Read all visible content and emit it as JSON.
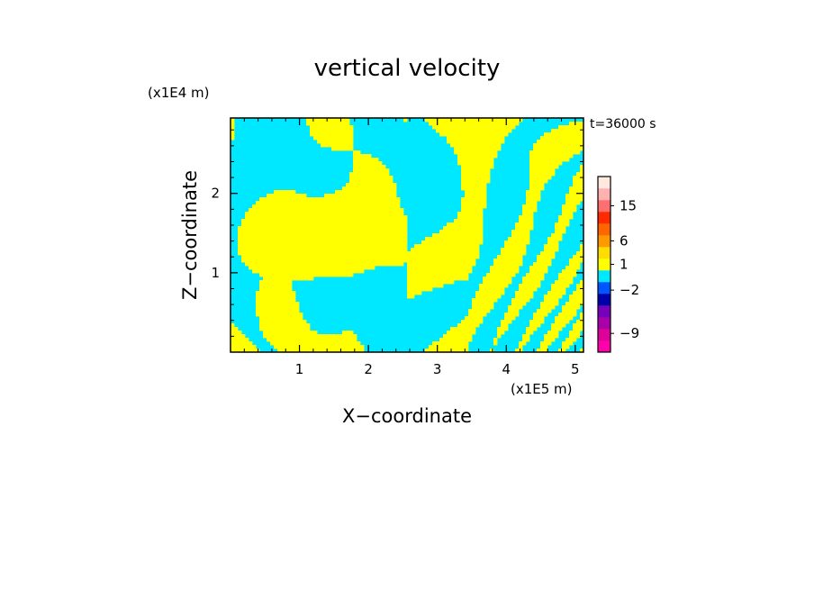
{
  "chart_data": {
    "type": "heatmap",
    "title": "vertical velocity",
    "xlabel": "X−coordinate",
    "ylabel": "Z−coordinate",
    "x_unit": "(x1E5 m)",
    "y_unit": "(x1E4 m)",
    "time_label": "t=36000 s",
    "xlim": [
      0,
      5.12
    ],
    "ylim": [
      0,
      2.95
    ],
    "x_ticks": [
      "1",
      "2",
      "3",
      "4",
      "5"
    ],
    "x_tick_values": [
      1,
      2,
      3,
      4,
      5
    ],
    "y_ticks": [
      "1",
      "2"
    ],
    "y_tick_values": [
      1,
      2
    ],
    "field_colors": {
      "positive": "#ffff00",
      "negative": "#00e8ff"
    },
    "colorbar": {
      "labels": [
        "15",
        "6",
        "1",
        "−2",
        "−9"
      ],
      "label_values": [
        15,
        6,
        1,
        -2,
        -9
      ],
      "bands": [
        {
          "color": "#ff00aa"
        },
        {
          "color": "#dd0099"
        },
        {
          "color": "#aa00aa"
        },
        {
          "color": "#7700bb"
        },
        {
          "color": "#0000aa"
        },
        {
          "color": "#0055ff"
        },
        {
          "color": "#00e8ff"
        },
        {
          "color": "#ffff00"
        },
        {
          "color": "#ffdd00"
        },
        {
          "color": "#ff9900"
        },
        {
          "color": "#ff6600"
        },
        {
          "color": "#ff2a00"
        },
        {
          "color": "#ff6f6f"
        },
        {
          "color": "#ffb0b0"
        },
        {
          "color": "#ffe8e0"
        }
      ]
    }
  }
}
